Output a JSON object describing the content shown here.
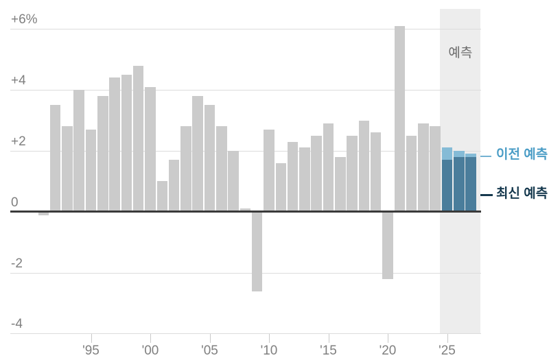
{
  "chart_data": {
    "type": "bar",
    "unit": "%",
    "grid": true,
    "y_axis": {
      "range": [
        -4,
        6
      ],
      "ticks": [
        {
          "value": 6,
          "label": "+6%"
        },
        {
          "value": 4,
          "label": "+4"
        },
        {
          "value": 2,
          "label": "+2"
        },
        {
          "value": 0,
          "label": "0"
        },
        {
          "value": -2,
          "label": "-2"
        },
        {
          "value": -4,
          "label": "-4"
        }
      ]
    },
    "x_axis": {
      "ticks": [
        {
          "year": 1995,
          "label": "'95"
        },
        {
          "year": 2000,
          "label": "'00"
        },
        {
          "year": 2005,
          "label": "'05"
        },
        {
          "year": 2010,
          "label": "'10"
        },
        {
          "year": 2015,
          "label": "'15"
        },
        {
          "year": 2020,
          "label": "'20"
        },
        {
          "year": 2025,
          "label": "'25"
        }
      ]
    },
    "actual": {
      "years": [
        1991,
        1992,
        1993,
        1994,
        1995,
        1996,
        1997,
        1998,
        1999,
        2000,
        2001,
        2002,
        2003,
        2004,
        2005,
        2006,
        2007,
        2008,
        2009,
        2010,
        2011,
        2012,
        2013,
        2014,
        2015,
        2016,
        2017,
        2018,
        2019,
        2020,
        2021,
        2022,
        2023,
        2024
      ],
      "values": [
        -0.1,
        3.5,
        2.8,
        4.0,
        2.7,
        3.8,
        4.4,
        4.5,
        4.8,
        4.1,
        1.0,
        1.7,
        2.8,
        3.8,
        3.5,
        2.8,
        2.0,
        0.1,
        -2.6,
        2.7,
        1.6,
        2.3,
        2.1,
        2.5,
        2.9,
        1.8,
        2.5,
        3.0,
        2.6,
        -2.2,
        6.1,
        2.5,
        2.9,
        2.8
      ]
    },
    "forecast": {
      "band_label": "예측",
      "years": [
        2025,
        2026,
        2027
      ],
      "latest": {
        "label": "최신 예측",
        "values": [
          1.7,
          1.8,
          1.8
        ]
      },
      "previous": {
        "label": "이전 예측",
        "values": [
          2.1,
          2.0,
          1.9
        ]
      }
    }
  },
  "colors": {
    "bar_actual": "#cbcbcb",
    "bar_latest_forecast": "#4a7d9b",
    "bar_previous_forecast": "#85bbd6",
    "forecast_band": "#ededed",
    "band_label_text": "#6b6b6b",
    "legend_previous_text": "#4b9dc6",
    "legend_latest_text": "#16394e",
    "legend_previous_line": "#74b2d2",
    "legend_latest_line": "#16394e",
    "axis_text": "#7f7f7f",
    "gridline": "#dcdcdc",
    "zero_line": "#3a3a3a"
  }
}
